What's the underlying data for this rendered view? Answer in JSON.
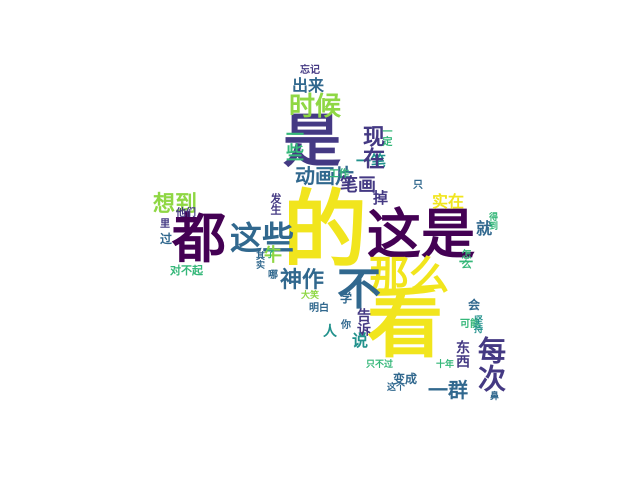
{
  "palette": {
    "yellow": "#f1e51d",
    "lime": "#8fd744",
    "green": "#35b779",
    "teal": "#21918c",
    "blue": "#31688e",
    "indigo": "#443983",
    "purple": "#440154"
  },
  "words": [
    {
      "text": "的",
      "color": "yellow"
    },
    {
      "text": "看",
      "color": "yellow"
    },
    {
      "text": "是",
      "color": "indigo"
    },
    {
      "text": "这是",
      "color": "purple"
    },
    {
      "text": "都",
      "color": "purple"
    },
    {
      "text": "那么",
      "color": "yellow"
    },
    {
      "text": "不",
      "color": "blue"
    },
    {
      "text": "这些",
      "color": "blue"
    },
    {
      "text": "时候",
      "color": "lime"
    },
    {
      "text": "出来",
      "color": "blue"
    },
    {
      "text": "神作",
      "color": "blue"
    },
    {
      "text": "动画片",
      "color": "blue"
    },
    {
      "text": "想到",
      "color": "lime"
    },
    {
      "text": "笔画",
      "color": "indigo"
    },
    {
      "text": "实在",
      "color": "yellow"
    },
    {
      "text": "每次",
      "color": "indigo"
    },
    {
      "text": "一群",
      "color": "blue"
    },
    {
      "text": "忘记",
      "color": "indigo"
    },
    {
      "text": "一笔",
      "color": "teal"
    },
    {
      "text": "一些",
      "color": "green"
    },
    {
      "text": "现在",
      "color": "indigo"
    },
    {
      "text": "牛",
      "color": "lime"
    },
    {
      "text": "人",
      "color": "teal"
    },
    {
      "text": "掉",
      "color": "indigo"
    },
    {
      "text": "就",
      "color": "blue"
    },
    {
      "text": "变成",
      "color": "blue"
    },
    {
      "text": "他们",
      "color": "indigo"
    },
    {
      "text": "过",
      "color": "blue"
    },
    {
      "text": "对不起",
      "color": "green"
    },
    {
      "text": "工作",
      "color": "green"
    },
    {
      "text": "发生",
      "color": "indigo"
    },
    {
      "text": "只",
      "color": "blue"
    },
    {
      "text": "只不过",
      "color": "green"
    },
    {
      "text": "十年",
      "color": "green"
    },
    {
      "text": "这个",
      "color": "blue"
    },
    {
      "text": "会",
      "color": "blue"
    },
    {
      "text": "可能",
      "color": "green"
    },
    {
      "text": "明白",
      "color": "blue"
    },
    {
      "text": "大笑",
      "color": "lime"
    },
    {
      "text": "你",
      "color": "blue"
    },
    {
      "text": "告诉",
      "color": "indigo"
    },
    {
      "text": "学",
      "color": "blue"
    },
    {
      "text": "里",
      "color": "indigo"
    },
    {
      "text": "了",
      "color": "green"
    },
    {
      "text": "怎么",
      "color": "green"
    },
    {
      "text": "说",
      "color": "teal"
    },
    {
      "text": "一",
      "color": "green"
    },
    {
      "text": "一定",
      "color": "green"
    },
    {
      "text": "其实",
      "color": "blue"
    },
    {
      "text": "哪",
      "color": "blue"
    },
    {
      "text": "得到",
      "color": "green"
    },
    {
      "text": "东西",
      "color": "indigo"
    },
    {
      "text": "鼻",
      "color": "blue"
    },
    {
      "text": "坚持",
      "color": "teal"
    }
  ]
}
